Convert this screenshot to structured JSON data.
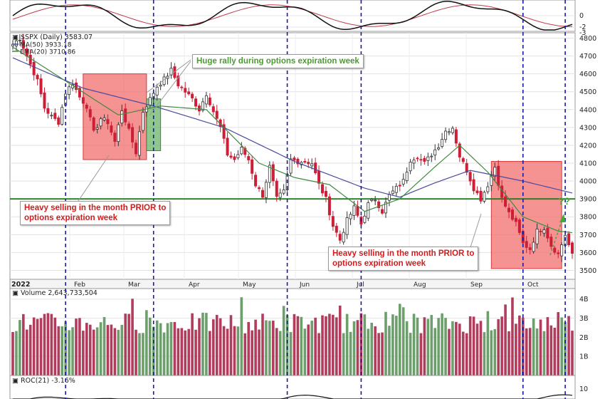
{
  "chart_data": {
    "type": "candlestick",
    "symbol_line": "$SPX (Daily) 3583.07",
    "year_label": "2022",
    "price_axis": {
      "ticks": [
        "4800",
        "4700",
        "4600",
        "4500",
        "4400",
        "4300",
        "4200",
        "4100",
        "4000",
        "3900",
        "3800",
        "3700",
        "3600",
        "3500"
      ],
      "ylim": [
        3450,
        4830
      ]
    },
    "upper_indicator": {
      "ticks": [
        "0",
        "-2",
        "-3"
      ]
    },
    "months": [
      "Feb",
      "Mar",
      "Apr",
      "May",
      "Jun",
      "Jul",
      "Aug",
      "Sep",
      "Oct"
    ],
    "legend": {
      "ma50": "MA(50) 3933.18",
      "ema20": "EMA(20) 3710.86"
    },
    "volume": {
      "label": "Volume 2,643,733,504",
      "ticks": [
        "4B",
        "3B",
        "2B",
        "1B"
      ]
    },
    "roc": {
      "label": "ROC(21) -3.16%",
      "ticks": [
        "10"
      ]
    },
    "support_level": 3900,
    "colors": {
      "up": "#5a8f5a",
      "down": "#cc1f36",
      "ma50": "#4a4aa0",
      "ema20": "#3f8a3f",
      "support": "#1e7d1e",
      "expiry_line": "#1a1aa0"
    },
    "price_path": [
      [
        0,
        4766
      ],
      [
        2,
        4800
      ],
      [
        4,
        4700
      ],
      [
        7,
        4560
      ],
      [
        9,
        4410
      ],
      [
        11,
        4360
      ],
      [
        13,
        4330
      ],
      [
        15,
        4495
      ],
      [
        17,
        4550
      ],
      [
        19,
        4470
      ],
      [
        21,
        4420
      ],
      [
        23,
        4270
      ],
      [
        25,
        4350
      ],
      [
        27,
        4330
      ],
      [
        29,
        4220
      ],
      [
        31,
        4400
      ],
      [
        33,
        4280
      ],
      [
        35,
        4160
      ],
      [
        37,
        4390
      ],
      [
        39,
        4460
      ],
      [
        41,
        4530
      ],
      [
        43,
        4570
      ],
      [
        45,
        4620
      ],
      [
        47,
        4540
      ],
      [
        49,
        4500
      ],
      [
        51,
        4460
      ],
      [
        53,
        4400
      ],
      [
        55,
        4490
      ],
      [
        57,
        4390
      ],
      [
        59,
        4300
      ],
      [
        61,
        4150
      ],
      [
        63,
        4120
      ],
      [
        65,
        4180
      ],
      [
        67,
        4120
      ],
      [
        69,
        3980
      ],
      [
        71,
        3920
      ],
      [
        73,
        4080
      ],
      [
        75,
        3900
      ],
      [
        77,
        3940
      ],
      [
        79,
        4120
      ],
      [
        81,
        4110
      ],
      [
        83,
        4110
      ],
      [
        85,
        4100
      ],
      [
        87,
        3980
      ],
      [
        89,
        3900
      ],
      [
        91,
        3750
      ],
      [
        93,
        3670
      ],
      [
        95,
        3780
      ],
      [
        97,
        3850
      ],
      [
        99,
        3760
      ],
      [
        101,
        3870
      ],
      [
        103,
        3900
      ],
      [
        105,
        3830
      ],
      [
        107,
        3920
      ],
      [
        109,
        3960
      ],
      [
        111,
        4000
      ],
      [
        113,
        4120
      ],
      [
        115,
        4140
      ],
      [
        117,
        4100
      ],
      [
        119,
        4150
      ],
      [
        121,
        4200
      ],
      [
        123,
        4280
      ],
      [
        125,
        4300
      ],
      [
        127,
        4140
      ],
      [
        129,
        4060
      ],
      [
        131,
        3960
      ],
      [
        133,
        3900
      ],
      [
        135,
        3980
      ],
      [
        137,
        4080
      ],
      [
        139,
        3900
      ],
      [
        141,
        3820
      ],
      [
        143,
        3760
      ],
      [
        145,
        3650
      ],
      [
        147,
        3620
      ],
      [
        149,
        3720
      ],
      [
        151,
        3740
      ],
      [
        153,
        3640
      ],
      [
        155,
        3590
      ],
      [
        157,
        3700
      ],
      [
        159,
        3583
      ]
    ],
    "ma50_path": [
      [
        0,
        4690
      ],
      [
        20,
        4520
      ],
      [
        40,
        4420
      ],
      [
        60,
        4300
      ],
      [
        80,
        4110
      ],
      [
        100,
        3960
      ],
      [
        110,
        3910
      ],
      [
        120,
        3990
      ],
      [
        130,
        4060
      ],
      [
        145,
        4000
      ],
      [
        159,
        3933
      ]
    ],
    "ema20_path": [
      [
        0,
        4750
      ],
      [
        15,
        4560
      ],
      [
        30,
        4370
      ],
      [
        42,
        4420
      ],
      [
        55,
        4400
      ],
      [
        70,
        4100
      ],
      [
        80,
        4020
      ],
      [
        90,
        3980
      ],
      [
        100,
        3830
      ],
      [
        110,
        3900
      ],
      [
        120,
        4080
      ],
      [
        127,
        4200
      ],
      [
        135,
        4050
      ],
      [
        145,
        3800
      ],
      [
        155,
        3720
      ],
      [
        159,
        3711
      ]
    ],
    "expiration_days": [
      15,
      40,
      78,
      99,
      145,
      157
    ],
    "boxes": [
      {
        "kind": "red",
        "from": 20,
        "to": 38,
        "high": 4600,
        "low": 4120
      },
      {
        "kind": "green",
        "from": 38,
        "to": 42,
        "high": 4460,
        "low": 4170
      },
      {
        "kind": "red",
        "from": 136,
        "to": 156,
        "high": 4110,
        "low": 3510
      }
    ]
  },
  "annotations": {
    "rally": "Huge rally during options expiration week",
    "selling_1_line1": "Heavy selling in the month PRIOR to",
    "selling_1_line2": "options expiration week",
    "selling_2_line1": "Heavy selling in the month PRIOR to",
    "selling_2_line2": "options expiration week",
    "question": "??"
  }
}
